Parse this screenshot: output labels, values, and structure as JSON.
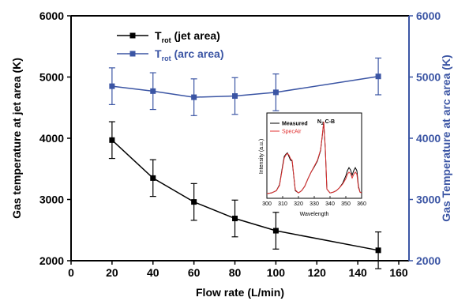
{
  "chart_data": {
    "type": "line",
    "xlabel": "Flow rate (L/min)",
    "ylabel_left": "Gas temperature at jet area (K)",
    "ylabel_right": "Gas Temperature at arc area (K)",
    "xlim": [
      0,
      165
    ],
    "ylim": [
      2000,
      6000
    ],
    "x_ticks": [
      "0",
      "20",
      "40",
      "60",
      "80",
      "100",
      "120",
      "140",
      "160"
    ],
    "y_ticks_left": [
      "2000",
      "3000",
      "4000",
      "5000",
      "6000"
    ],
    "y_ticks_right": [
      "2000",
      "3000",
      "4000",
      "5000",
      "6000"
    ],
    "legend_position": "top-center",
    "series": [
      {
        "name_main": "T",
        "name_sub": "rot",
        "name_suffix": " (jet area)",
        "color": "#000000",
        "marker": "square",
        "axis": "left",
        "x": [
          20,
          40,
          60,
          80,
          100,
          150
        ],
        "y": [
          3970,
          3350,
          2960,
          2690,
          2490,
          2170
        ],
        "err": [
          300,
          300,
          300,
          300,
          300,
          300
        ]
      },
      {
        "name_main": "T",
        "name_sub": "rot",
        "name_suffix": " (arc area)",
        "color": "#3b55a4",
        "marker": "square",
        "axis": "right",
        "x": [
          20,
          40,
          60,
          80,
          100,
          150
        ],
        "y": [
          4850,
          4770,
          4670,
          4690,
          4750,
          5010
        ],
        "err": [
          300,
          300,
          300,
          300,
          300,
          300
        ]
      }
    ],
    "inset": {
      "type": "line",
      "xlabel": "Wavelength",
      "ylabel": "Intensity (a.u.)",
      "annotation_main": "N",
      "annotation_sub": "2",
      "annotation_suffix": " C-B",
      "xlim": [
        300,
        360
      ],
      "x_ticks": [
        "300",
        "310",
        "320",
        "330",
        "340",
        "350",
        "360"
      ],
      "series": [
        {
          "name": "Measured",
          "color": "#000000",
          "x": [
            300,
            303,
            306,
            308,
            310,
            311,
            312,
            313,
            314,
            315,
            316,
            318,
            320,
            322,
            324,
            326,
            328,
            330,
            332,
            334,
            335,
            336,
            337,
            338,
            340,
            342,
            344,
            346,
            348,
            350,
            351,
            352,
            353,
            354,
            355,
            356,
            357,
            358,
            359,
            360
          ],
          "y": [
            0.02,
            0.03,
            0.06,
            0.14,
            0.4,
            0.52,
            0.55,
            0.57,
            0.52,
            0.47,
            0.46,
            0.06,
            0.03,
            0.06,
            0.12,
            0.22,
            0.31,
            0.38,
            0.46,
            0.6,
            0.78,
            0.98,
            0.62,
            0.08,
            0.03,
            0.04,
            0.06,
            0.1,
            0.16,
            0.26,
            0.33,
            0.37,
            0.34,
            0.27,
            0.33,
            0.37,
            0.33,
            0.12,
            0.04,
            0.03
          ]
        },
        {
          "name": "SpecAir",
          "color": "#e03030",
          "x": [
            300,
            303,
            306,
            308,
            310,
            311,
            312,
            313,
            314,
            315,
            316,
            318,
            320,
            322,
            324,
            326,
            328,
            330,
            332,
            334,
            335,
            336,
            337,
            338,
            340,
            342,
            344,
            346,
            348,
            350,
            351,
            352,
            353,
            354,
            355,
            356,
            357,
            358,
            359,
            360
          ],
          "y": [
            0.02,
            0.03,
            0.06,
            0.13,
            0.38,
            0.5,
            0.54,
            0.56,
            0.54,
            0.49,
            0.47,
            0.07,
            0.03,
            0.06,
            0.12,
            0.22,
            0.31,
            0.39,
            0.47,
            0.61,
            0.79,
            0.99,
            0.64,
            0.08,
            0.03,
            0.04,
            0.06,
            0.1,
            0.15,
            0.22,
            0.28,
            0.31,
            0.29,
            0.23,
            0.28,
            0.31,
            0.28,
            0.1,
            0.04,
            0.03
          ]
        }
      ]
    }
  }
}
